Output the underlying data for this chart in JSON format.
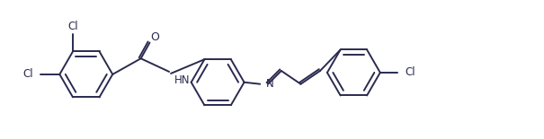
{
  "background_color": "#ffffff",
  "line_color": "#2a2a50",
  "line_width": 1.4,
  "text_color": "#2a2a50",
  "font_size": 8.5,
  "figsize": [
    6.05,
    1.55
  ],
  "dpi": 100,
  "xlim": [
    0.0,
    6.05
  ],
  "ylim": [
    0.0,
    1.55
  ]
}
